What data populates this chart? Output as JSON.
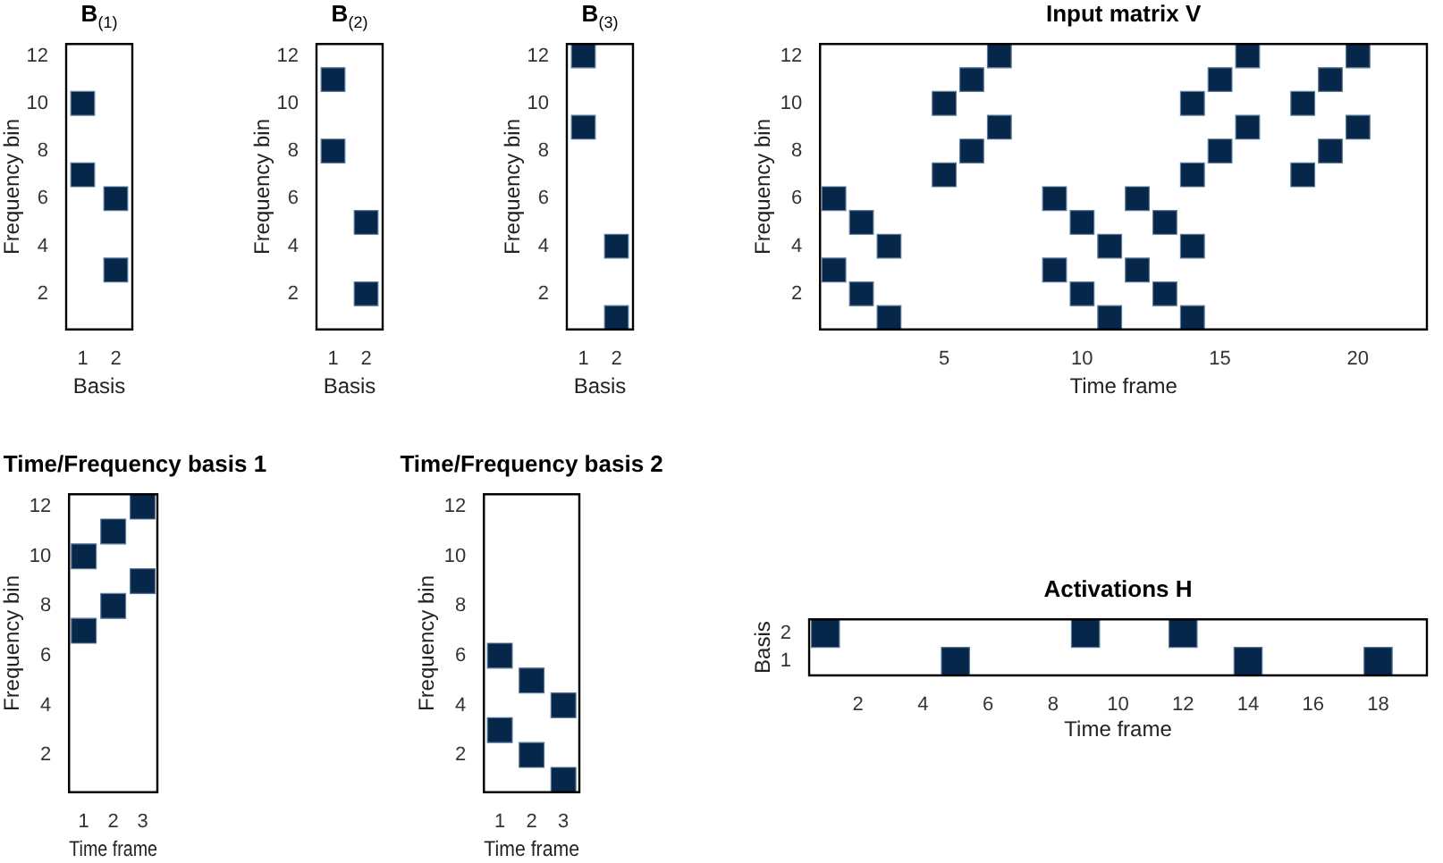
{
  "chart_data": [
    {
      "type": "scatter",
      "title": "B$_{(1)}$",
      "xlabel": "Basis",
      "ylabel": "Frequency bin",
      "color": "#06264a",
      "marker": "square",
      "grid": false,
      "xlim": [
        0.5,
        2.5
      ],
      "xticks": [
        1,
        2
      ],
      "ylim": [
        0.5,
        12.5
      ],
      "yticks": [
        2,
        4,
        6,
        8,
        10,
        12
      ],
      "x": [
        1,
        1,
        2,
        2
      ],
      "values": [
        10,
        7,
        6,
        3
      ]
    },
    {
      "type": "scatter",
      "title": "B$_{(2)}$",
      "xlabel": "Basis",
      "ylabel": "Frequency bin",
      "color": "#06264a",
      "marker": "square",
      "grid": false,
      "xlim": [
        0.5,
        2.5
      ],
      "xticks": [
        1,
        2
      ],
      "ylim": [
        0.5,
        12.5
      ],
      "yticks": [
        2,
        4,
        6,
        8,
        10,
        12
      ],
      "x": [
        1,
        1,
        2,
        2
      ],
      "values": [
        11,
        8,
        5,
        2
      ]
    },
    {
      "type": "scatter",
      "title": "B$_{(3)}$",
      "xlabel": "Basis",
      "ylabel": "Frequency bin",
      "color": "#06264a",
      "marker": "square",
      "grid": false,
      "xlim": [
        0.5,
        2.5
      ],
      "xticks": [
        1,
        2
      ],
      "ylim": [
        0.5,
        12.5
      ],
      "yticks": [
        2,
        4,
        6,
        8,
        10,
        12
      ],
      "x": [
        1,
        1,
        2,
        2
      ],
      "values": [
        12,
        9,
        4,
        1
      ]
    },
    {
      "type": "scatter",
      "title": "Input matrix V",
      "xlabel": "Time frame",
      "ylabel": "Frequency bin",
      "color": "#06264a",
      "marker": "square",
      "grid": false,
      "xlim": [
        0.5,
        22.5
      ],
      "xticks": [
        5,
        10,
        15,
        20
      ],
      "ylim": [
        0.5,
        12.5
      ],
      "yticks": [
        2,
        4,
        6,
        8,
        10,
        12
      ],
      "x": [
        1,
        1,
        2,
        2,
        3,
        3,
        5,
        5,
        6,
        6,
        7,
        7,
        9,
        9,
        10,
        10,
        11,
        11,
        12,
        12,
        13,
        13,
        14,
        14,
        14,
        14,
        15,
        15,
        16,
        16,
        18,
        18,
        19,
        19,
        20,
        20
      ],
      "values": [
        6,
        3,
        5,
        2,
        4,
        1,
        10,
        7,
        11,
        8,
        12,
        9,
        6,
        3,
        5,
        2,
        4,
        1,
        6,
        3,
        5,
        2,
        4,
        1,
        10,
        7,
        11,
        8,
        12,
        9,
        10,
        7,
        11,
        8,
        12,
        9
      ]
    },
    {
      "type": "scatter",
      "title": "Time/Frequency basis 1",
      "xlabel": "Time frame",
      "ylabel": "Frequency bin",
      "color": "#06264a",
      "marker": "square",
      "grid": false,
      "xlim": [
        0.5,
        3.5
      ],
      "xticks": [
        1,
        2,
        3
      ],
      "ylim": [
        0.5,
        12.5
      ],
      "yticks": [
        2,
        4,
        6,
        8,
        10,
        12
      ],
      "x": [
        1,
        1,
        2,
        2,
        3,
        3
      ],
      "values": [
        10,
        7,
        11,
        8,
        12,
        9
      ]
    },
    {
      "type": "scatter",
      "title": "Time/Frequency basis 2",
      "xlabel": "Time frame",
      "ylabel": "Frequency bin",
      "color": "#06264a",
      "marker": "square",
      "grid": false,
      "xlim": [
        0.5,
        3.5
      ],
      "xticks": [
        1,
        2,
        3
      ],
      "ylim": [
        0.5,
        12.5
      ],
      "yticks": [
        2,
        4,
        6,
        8,
        10,
        12
      ],
      "x": [
        1,
        1,
        2,
        2,
        3,
        3
      ],
      "values": [
        6,
        3,
        5,
        2,
        4,
        1
      ]
    },
    {
      "type": "scatter",
      "title": "Activations H",
      "xlabel": "Time frame",
      "ylabel": "Basis",
      "color": "#06264a",
      "marker": "square",
      "grid": false,
      "xlim": [
        0.5,
        19.5
      ],
      "xticks": [
        2,
        4,
        6,
        8,
        10,
        12,
        14,
        16,
        18
      ],
      "ylim": [
        0.5,
        2.5
      ],
      "yticks": [
        1,
        2
      ],
      "x": [
        1,
        9,
        12,
        5,
        14,
        18
      ],
      "values": [
        2,
        2,
        2,
        1,
        1,
        1
      ]
    }
  ]
}
